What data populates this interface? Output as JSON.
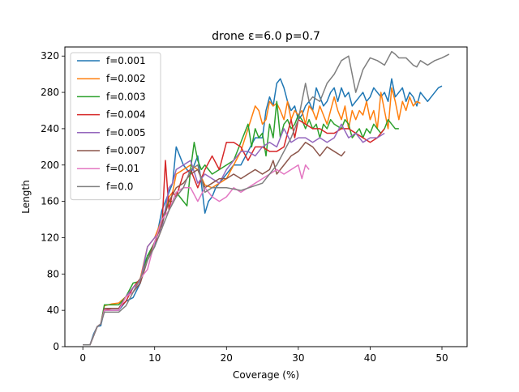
{
  "chart_data": {
    "type": "line",
    "title": "drone ε=6.0 p=0.7",
    "xlabel": "Coverage (%)",
    "ylabel": "Length",
    "xlim": [
      -2.5,
      53.5
    ],
    "ylim": [
      0,
      330
    ],
    "xticks": [
      0,
      10,
      20,
      30,
      40,
      50
    ],
    "yticks": [
      0,
      40,
      80,
      120,
      160,
      200,
      240,
      280,
      320
    ],
    "grid": false,
    "legend_position": "top-left",
    "series": [
      {
        "name": "f=0.001",
        "color": "#1f77b4",
        "x": [
          0,
          1,
          1.5,
          2,
          2.5,
          3,
          4,
          5,
          6,
          7,
          8,
          8.5,
          9,
          10,
          10.5,
          11,
          11.5,
          12,
          12.5,
          13,
          13.5,
          14,
          14.5,
          15,
          15.5,
          16,
          16.5,
          17,
          17.5,
          18,
          18.5,
          19,
          19.5,
          20,
          21,
          22,
          23,
          24,
          25,
          25.5,
          26,
          26.5,
          27,
          27.5,
          28,
          28.5,
          29,
          29.5,
          30,
          30.5,
          31,
          31.5,
          32,
          32.5,
          33,
          33.5,
          34,
          34.5,
          35,
          35.5,
          36,
          36.5,
          37,
          37.5,
          38,
          38.5,
          39,
          39.5,
          40,
          40.5,
          41,
          41.5,
          42,
          42.5,
          43,
          43.5,
          44,
          44.5,
          45,
          45.5,
          46,
          46.5,
          47,
          47.5,
          48,
          48.5,
          49,
          49.5,
          50
        ],
        "y": [
          2,
          2,
          14,
          22,
          23,
          40,
          40,
          40,
          50,
          54,
          70,
          90,
          100,
          110,
          130,
          150,
          160,
          170,
          180,
          220,
          210,
          200,
          195,
          190,
          200,
          210,
          180,
          147,
          160,
          165,
          175,
          180,
          185,
          190,
          200,
          200,
          215,
          230,
          230,
          260,
          275,
          265,
          290,
          295,
          285,
          270,
          260,
          265,
          250,
          255,
          265,
          270,
          260,
          285,
          275,
          265,
          270,
          280,
          285,
          270,
          285,
          275,
          280,
          265,
          270,
          275,
          280,
          270,
          275,
          285,
          280,
          275,
          280,
          270,
          295,
          275,
          280,
          285,
          270,
          280,
          275,
          265,
          280,
          275,
          270,
          275,
          280,
          285,
          287
        ]
      },
      {
        "name": "f=0.002",
        "color": "#ff7f0e",
        "x": [
          0,
          1,
          1.5,
          2,
          2.5,
          3,
          4,
          5,
          6,
          7,
          8,
          9,
          10,
          11,
          11.5,
          12,
          12.5,
          13,
          14,
          15,
          16,
          17,
          18,
          19,
          20,
          21,
          22,
          23,
          24,
          24.5,
          25,
          25.5,
          26,
          26.5,
          27,
          27.5,
          28,
          28.5,
          29,
          29.5,
          30,
          30.5,
          31,
          31.5,
          32,
          32.5,
          33,
          33.5,
          34,
          34.5,
          35,
          35.5,
          36,
          36.5,
          37,
          37.5,
          38,
          38.5,
          39,
          39.5,
          40,
          40.5,
          41,
          41.5,
          42,
          42.5,
          43,
          43.5,
          44,
          44.5,
          45,
          45.5,
          46,
          46.5,
          47
        ],
        "y": [
          2,
          2,
          12,
          22,
          25,
          45,
          47,
          48,
          55,
          65,
          75,
          110,
          120,
          140,
          150,
          165,
          170,
          190,
          195,
          200,
          195,
          178,
          175,
          180,
          185,
          200,
          215,
          240,
          265,
          260,
          245,
          250,
          270,
          265,
          268,
          260,
          250,
          270,
          250,
          260,
          255,
          260,
          245,
          265,
          260,
          250,
          265,
          255,
          245,
          260,
          275,
          260,
          250,
          265,
          240,
          260,
          250,
          260,
          255,
          270,
          250,
          260,
          240,
          280,
          260,
          240,
          285,
          270,
          250,
          270,
          260,
          275,
          265,
          270,
          268
        ]
      },
      {
        "name": "f=0.003",
        "color": "#2ca02c",
        "x": [
          0,
          1,
          1.5,
          2,
          2.5,
          3,
          4,
          5,
          6,
          7,
          8,
          9,
          10,
          11,
          11.5,
          12,
          12.5,
          13,
          14,
          14.5,
          15,
          15.5,
          16,
          16.5,
          17,
          18,
          19,
          20,
          21,
          22,
          23,
          23.5,
          24,
          24.5,
          25,
          25.5,
          26,
          26.5,
          27,
          27.5,
          28,
          28.5,
          29,
          29.5,
          30,
          30.5,
          31,
          31.5,
          32,
          32.5,
          33,
          33.5,
          34,
          34.5,
          35,
          36,
          36.5,
          37,
          37.5,
          38,
          38.5,
          39,
          39.5,
          40,
          40.5,
          41,
          41.5,
          42,
          42.5,
          43,
          43.5,
          44
        ],
        "y": [
          2,
          2,
          12,
          22,
          25,
          46,
          46,
          46,
          55,
          70,
          72,
          100,
          115,
          140,
          150,
          160,
          160,
          170,
          160,
          155,
          195,
          225,
          205,
          195,
          200,
          190,
          195,
          200,
          205,
          225,
          245,
          220,
          240,
          230,
          235,
          210,
          245,
          230,
          270,
          230,
          245,
          250,
          240,
          245,
          255,
          250,
          240,
          250,
          240,
          245,
          230,
          245,
          240,
          250,
          245,
          240,
          250,
          245,
          230,
          235,
          240,
          230,
          240,
          235,
          245,
          240,
          235,
          240,
          250,
          245,
          240,
          240
        ]
      },
      {
        "name": "f=0.004",
        "color": "#d62728",
        "x": [
          0,
          1,
          1.5,
          2,
          2.5,
          3,
          4,
          5,
          6,
          7,
          8,
          9,
          10,
          10.5,
          11,
          11.5,
          12,
          12.5,
          13,
          14,
          15,
          16,
          17,
          18,
          19,
          20,
          21,
          22,
          23,
          24,
          25,
          26,
          27,
          28,
          29,
          29.5,
          30,
          31,
          32,
          33,
          34,
          35,
          36,
          37,
          38,
          39,
          40,
          41,
          42
        ],
        "y": [
          2,
          2,
          12,
          22,
          25,
          40,
          42,
          42,
          50,
          65,
          75,
          95,
          115,
          120,
          130,
          205,
          150,
          170,
          165,
          190,
          195,
          175,
          195,
          210,
          195,
          225,
          225,
          220,
          205,
          220,
          220,
          215,
          215,
          220,
          250,
          230,
          250,
          245,
          240,
          240,
          235,
          235,
          240,
          240,
          235,
          230,
          225,
          230,
          240
        ]
      },
      {
        "name": "f=0.005",
        "color": "#9467bd",
        "x": [
          0,
          1,
          1.5,
          2,
          2.5,
          3,
          4,
          5,
          6,
          7,
          8,
          9,
          10,
          11,
          12,
          12.5,
          13,
          14,
          15,
          16,
          17,
          18,
          19,
          20,
          21,
          22,
          23,
          24,
          25,
          26,
          27,
          28,
          29,
          30,
          31,
          32,
          33,
          34,
          35,
          36,
          37,
          38,
          39,
          40,
          41,
          42
        ],
        "y": [
          2,
          2,
          12,
          22,
          25,
          42,
          42,
          42,
          55,
          65,
          72,
          110,
          120,
          130,
          175,
          180,
          195,
          200,
          205,
          180,
          190,
          185,
          180,
          195,
          205,
          215,
          215,
          210,
          220,
          225,
          220,
          240,
          225,
          230,
          230,
          225,
          230,
          225,
          230,
          245,
          230,
          235,
          225,
          230,
          230,
          235
        ]
      },
      {
        "name": "f=0.007",
        "color": "#8c564b",
        "x": [
          0,
          1,
          1.5,
          2,
          2.5,
          3,
          4,
          5,
          6,
          7,
          8,
          9,
          10,
          11,
          12,
          13,
          14,
          15,
          16,
          17,
          18,
          19,
          20,
          21,
          22,
          23,
          24,
          25,
          26,
          26.5,
          27,
          28,
          29,
          30,
          31,
          32,
          33,
          34,
          35,
          36,
          36.5
        ],
        "y": [
          2,
          2,
          12,
          22,
          25,
          42,
          42,
          42,
          55,
          60,
          70,
          95,
          115,
          135,
          160,
          175,
          180,
          190,
          195,
          175,
          180,
          185,
          185,
          190,
          185,
          190,
          195,
          190,
          195,
          205,
          190,
          200,
          210,
          215,
          225,
          220,
          210,
          220,
          215,
          210,
          215
        ]
      },
      {
        "name": "f=0.01",
        "color": "#e377c2",
        "x": [
          0,
          1,
          1.5,
          2,
          2.5,
          3,
          4,
          5,
          6,
          7,
          8,
          9,
          10,
          11,
          12,
          13,
          14,
          15,
          16,
          17,
          18,
          19,
          20,
          21,
          22,
          23,
          24,
          25,
          26,
          27,
          28,
          29,
          30,
          30.5,
          31,
          31.5
        ],
        "y": [
          2,
          2,
          12,
          22,
          25,
          40,
          40,
          40,
          55,
          60,
          75,
          85,
          115,
          140,
          150,
          170,
          175,
          175,
          160,
          175,
          165,
          160,
          165,
          175,
          170,
          175,
          180,
          185,
          190,
          195,
          190,
          195,
          200,
          185,
          200,
          195
        ]
      },
      {
        "name": "f=0.0",
        "color": "#7f7f7f",
        "x": [
          0,
          1,
          1.5,
          2,
          2.5,
          3,
          4,
          5,
          6,
          7,
          8,
          9,
          10,
          11,
          12,
          13,
          14,
          15,
          16,
          17,
          18,
          20,
          22,
          25,
          26,
          27,
          28,
          29,
          30,
          31,
          31.5,
          32,
          33,
          34,
          35,
          36,
          37,
          38,
          39,
          40,
          41,
          42,
          43,
          43.5,
          44,
          45,
          46,
          46.5,
          47,
          48,
          49,
          50,
          51
        ],
        "y": [
          2,
          2,
          12,
          22,
          25,
          38,
          38,
          38,
          45,
          60,
          75,
          95,
          110,
          130,
          150,
          165,
          175,
          195,
          200,
          170,
          175,
          175,
          172,
          180,
          190,
          200,
          215,
          230,
          250,
          290,
          270,
          275,
          270,
          290,
          300,
          315,
          320,
          280,
          305,
          318,
          315,
          310,
          325,
          322,
          318,
          318,
          310,
          308,
          315,
          310,
          315,
          318,
          322
        ]
      }
    ]
  }
}
